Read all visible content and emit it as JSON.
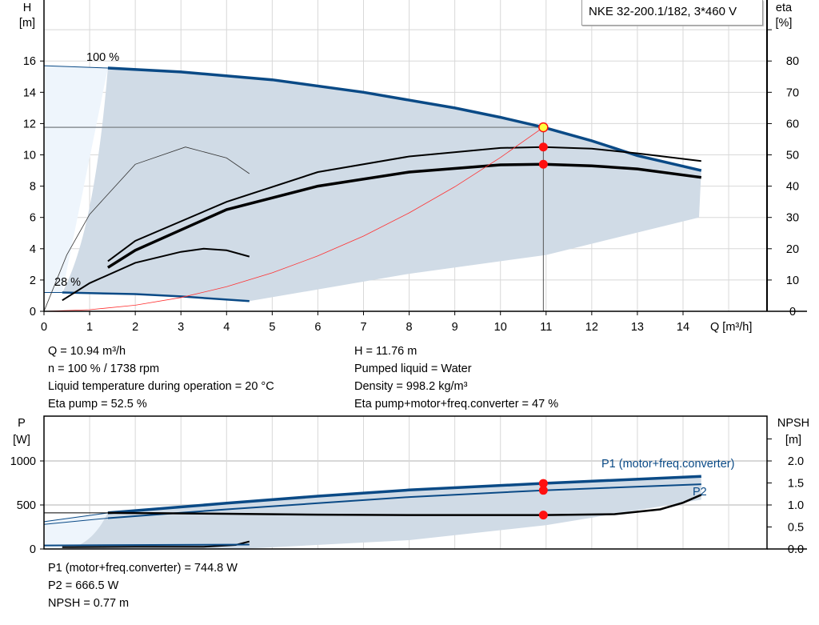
{
  "chart_data": [
    {
      "type": "line",
      "title": "NKE 32-200.1/182, 3*460 V",
      "xlabel": "Q [m³/h]",
      "ylabel_left": [
        "H",
        "[m]"
      ],
      "ylabel_right": [
        "eta",
        "[%]"
      ],
      "xlim": [
        0,
        15.84
      ],
      "ylim_left": [
        0,
        19.9
      ],
      "ylim_right": [
        0,
        99.5
      ],
      "x_ticks": [
        "0",
        "1",
        "2",
        "3",
        "4",
        "5",
        "6",
        "7",
        "8",
        "9",
        "10",
        "11",
        "12",
        "13",
        "14"
      ],
      "y_ticks_left": [
        "0",
        "2",
        "4",
        "6",
        "8",
        "10",
        "12",
        "14",
        "16"
      ],
      "y_ticks_right": [
        "0",
        "10",
        "20",
        "30",
        "40",
        "50",
        "60",
        "70",
        "80"
      ],
      "grid": true,
      "annotations": [
        "100 %",
        "28 %"
      ],
      "colors": {
        "head": "#0a4a86",
        "eta": "#000000",
        "system": "#ff3030",
        "region": "#d0dbe6",
        "region_light": "#eef5fc",
        "point": "#ff1010",
        "duty_point": "#ffff40"
      },
      "series": [
        {
          "key": "head_100",
          "unit": "m",
          "x": [
            1.4,
            3,
            5,
            7,
            9,
            10,
            10.94,
            12,
            13,
            14.4
          ],
          "y": [
            15.55,
            15.3,
            14.8,
            14.0,
            13.0,
            12.4,
            11.76,
            10.9,
            9.95,
            9.0
          ]
        },
        {
          "key": "head_100_ext",
          "unit": "m",
          "x": [
            0,
            1.4
          ],
          "y": [
            15.7,
            15.55
          ]
        },
        {
          "key": "head_28",
          "unit": "m",
          "x": [
            0.4,
            2,
            3,
            4.5
          ],
          "y": [
            1.2,
            1.1,
            0.95,
            0.65
          ]
        },
        {
          "key": "head_28_ext",
          "unit": "m",
          "x": [
            0,
            0.4
          ],
          "y": [
            1.2,
            1.2
          ]
        },
        {
          "key": "eta_pump",
          "unit": "%",
          "x": [
            1.4,
            2,
            4,
            6,
            8,
            10,
            10.94,
            12,
            13,
            14.4
          ],
          "y": [
            16,
            22.5,
            35,
            44.5,
            49.5,
            52.2,
            52.5,
            52,
            50.5,
            48
          ]
        },
        {
          "key": "eta_total",
          "unit": "%",
          "x": [
            1.4,
            2,
            4,
            6,
            8,
            10,
            10.94,
            12,
            13,
            14.4
          ],
          "y": [
            14,
            19.5,
            32.5,
            40,
            44.5,
            46.8,
            47,
            46.5,
            45.5,
            42.8
          ]
        },
        {
          "key": "eta_pump_28",
          "unit": "%",
          "x": [
            0,
            0.5,
            1,
            2,
            3.1,
            4,
            4.5
          ],
          "y": [
            0,
            18,
            31,
            47,
            52.5,
            49,
            44
          ]
        },
        {
          "key": "eta_total_28",
          "unit": "%",
          "x": [
            0.4,
            1,
            2,
            3,
            3.5,
            4,
            4.5
          ],
          "y": [
            3.5,
            9,
            15.5,
            19,
            20,
            19.5,
            17.5
          ]
        },
        {
          "key": "system_curve",
          "unit": "m",
          "x": [
            0,
            1,
            2,
            3,
            4,
            5,
            6,
            7,
            8,
            9,
            10,
            10.94
          ],
          "y": [
            0,
            0.1,
            0.39,
            0.88,
            1.57,
            2.46,
            3.54,
            4.81,
            6.29,
            7.96,
            9.83,
            11.76
          ]
        }
      ],
      "region_boundary_lower": {
        "x": [
          4.5,
          8,
          11,
          14.35
        ],
        "y": [
          0.65,
          2.4,
          3.6,
          6.0
        ]
      },
      "duty_point": {
        "Q": 10.94,
        "H": 11.76,
        "eta_pump": 52.5,
        "eta_total": 47
      }
    },
    {
      "type": "line",
      "ylabel_left": [
        "P",
        "[W]"
      ],
      "ylabel_right": [
        "NPSH",
        "[m]"
      ],
      "xlim": [
        0,
        15.84
      ],
      "ylim_left": [
        0,
        1509
      ],
      "ylim_right": [
        0,
        3.02
      ],
      "y_ticks_left": [
        "0",
        "500",
        "1000"
      ],
      "y_ticks_right": [
        "0.0",
        "0.5",
        "1.0",
        "1.5",
        "2.0"
      ],
      "grid": true,
      "series": [
        {
          "key": "p1",
          "name": "P1 (motor+freq.converter)",
          "unit": "W",
          "x": [
            1.4,
            4,
            6,
            8,
            10.94,
            14.4
          ],
          "y": [
            410,
            520,
            600,
            670,
            745,
            825
          ]
        },
        {
          "key": "p1_ext",
          "unit": "W",
          "x": [
            0,
            1.4
          ],
          "y": [
            310,
            410
          ]
        },
        {
          "key": "p2",
          "name": "P2",
          "unit": "W",
          "x": [
            1.4,
            4,
            6,
            8,
            10.94,
            14.4
          ],
          "y": [
            350,
            450,
            520,
            590,
            666,
            735
          ]
        },
        {
          "key": "p2_ext",
          "unit": "W",
          "x": [
            0,
            1.4
          ],
          "y": [
            280,
            350
          ]
        },
        {
          "key": "npsh",
          "unit": "m",
          "x": [
            1.4,
            4,
            6,
            8,
            10.94,
            12.5,
            13.5,
            14,
            14.4
          ],
          "y": [
            0.82,
            0.8,
            0.78,
            0.77,
            0.77,
            0.79,
            0.9,
            1.05,
            1.23
          ]
        },
        {
          "key": "npsh_ext",
          "unit": "m",
          "x": [
            0,
            1.4
          ],
          "y": [
            0.82,
            0.82
          ]
        },
        {
          "key": "npsh_28",
          "unit": "m",
          "x": [
            0.4,
            2,
            3.5,
            4.2,
            4.5
          ],
          "y": [
            0.04,
            0.05,
            0.05,
            0.09,
            0.17
          ]
        },
        {
          "key": "p1_28",
          "unit": "W",
          "x": [
            0,
            4.5
          ],
          "y": [
            40,
            50
          ]
        }
      ],
      "region_boundary_lower": {
        "x": [
          4.5,
          8,
          11,
          14.4
        ],
        "y": [
          5,
          100,
          270,
          560
        ]
      },
      "duty_point": {
        "Q": 10.94,
        "P1": 744.8,
        "P2": 666.5,
        "NPSH": 0.77
      }
    }
  ],
  "readouts": {
    "left": [
      "Q = 10.94 m³/h",
      "n = 100 % / 1738 rpm",
      "Liquid temperature during operation = 20 °C",
      "Eta pump = 52.5 %"
    ],
    "right": [
      "H = 11.76 m",
      "Pumped liquid = Water",
      "Density = 998.2 kg/m³",
      "Eta pump+motor+freq.converter = 47 %"
    ],
    "bottom": [
      "P1 (motor+freq.converter) = 744.8 W",
      "P2 = 666.5 W",
      "NPSH = 0.77 m"
    ]
  }
}
